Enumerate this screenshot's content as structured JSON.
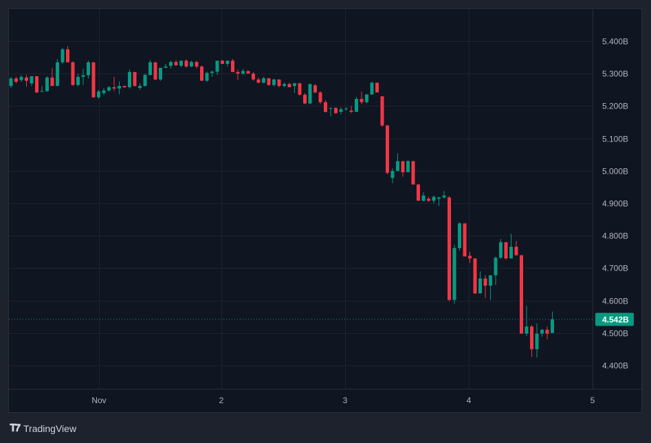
{
  "brand": {
    "name": "TradingView",
    "logo_icon": "tradingview-logo-icon"
  },
  "colors": {
    "background": "#1e222d",
    "pane": "#0f1521",
    "grid": "#1f2430",
    "up": "#089981",
    "down": "#f23645",
    "axis_text": "#b2b5be",
    "last_price_bg": "#089981"
  },
  "price_axis": {
    "labels": [
      "5.400B",
      "5.300B",
      "5.200B",
      "5.100B",
      "5.000B",
      "4.900B",
      "4.800B",
      "4.700B",
      "4.600B",
      "4.500B",
      "4.400B"
    ],
    "values": [
      5.4,
      5.3,
      5.2,
      5.1,
      5.0,
      4.9,
      4.8,
      4.7,
      4.6,
      4.5,
      4.4
    ]
  },
  "time_axis": {
    "labels": [
      "Nov",
      "2",
      "3",
      "4",
      "5"
    ]
  },
  "last_price": {
    "label": "4.542B",
    "value": 4.542
  },
  "chart_data": {
    "type": "candlestick",
    "title": "",
    "xlabel": "",
    "ylabel": "",
    "ylim": [
      4.35,
      5.48
    ],
    "unit": "B",
    "x_tick_labels": [
      "Nov",
      "2",
      "3",
      "4",
      "5"
    ],
    "y_tick_labels": [
      "4.400B",
      "4.500B",
      "4.600B",
      "4.700B",
      "4.800B",
      "4.900B",
      "5.000B",
      "5.100B",
      "5.200B",
      "5.300B",
      "5.400B"
    ],
    "last_price": 4.542,
    "grid": true,
    "interval": "1h (approx.)",
    "candles": [
      {
        "o": 5.262,
        "h": 5.29,
        "l": 5.255,
        "c": 5.285
      },
      {
        "o": 5.285,
        "h": 5.29,
        "l": 5.27,
        "c": 5.275
      },
      {
        "o": 5.28,
        "h": 5.295,
        "l": 5.275,
        "c": 5.29
      },
      {
        "o": 5.288,
        "h": 5.296,
        "l": 5.26,
        "c": 5.278
      },
      {
        "o": 5.27,
        "h": 5.292,
        "l": 5.262,
        "c": 5.292
      },
      {
        "o": 5.292,
        "h": 5.292,
        "l": 5.24,
        "c": 5.242
      },
      {
        "o": 5.244,
        "h": 5.262,
        "l": 5.244,
        "c": 5.246
      },
      {
        "o": 5.246,
        "h": 5.292,
        "l": 5.244,
        "c": 5.288
      },
      {
        "o": 5.288,
        "h": 5.318,
        "l": 5.262,
        "c": 5.262
      },
      {
        "o": 5.262,
        "h": 5.345,
        "l": 5.262,
        "c": 5.335
      },
      {
        "o": 5.335,
        "h": 5.38,
        "l": 5.33,
        "c": 5.375
      },
      {
        "o": 5.375,
        "h": 5.385,
        "l": 5.335,
        "c": 5.335
      },
      {
        "o": 5.335,
        "h": 5.338,
        "l": 5.262,
        "c": 5.265
      },
      {
        "o": 5.265,
        "h": 5.3,
        "l": 5.26,
        "c": 5.29
      },
      {
        "o": 5.29,
        "h": 5.315,
        "l": 5.265,
        "c": 5.295
      },
      {
        "o": 5.295,
        "h": 5.34,
        "l": 5.285,
        "c": 5.335
      },
      {
        "o": 5.335,
        "h": 5.335,
        "l": 5.225,
        "c": 5.227
      },
      {
        "o": 5.227,
        "h": 5.25,
        "l": 5.222,
        "c": 5.245
      },
      {
        "o": 5.24,
        "h": 5.256,
        "l": 5.234,
        "c": 5.248
      },
      {
        "o": 5.248,
        "h": 5.262,
        "l": 5.244,
        "c": 5.258
      },
      {
        "o": 5.258,
        "h": 5.29,
        "l": 5.246,
        "c": 5.254
      },
      {
        "o": 5.254,
        "h": 5.276,
        "l": 5.236,
        "c": 5.262
      },
      {
        "o": 5.262,
        "h": 5.262,
        "l": 5.256,
        "c": 5.258
      },
      {
        "o": 5.258,
        "h": 5.312,
        "l": 5.254,
        "c": 5.305
      },
      {
        "o": 5.305,
        "h": 5.305,
        "l": 5.26,
        "c": 5.262
      },
      {
        "o": 5.256,
        "h": 5.27,
        "l": 5.25,
        "c": 5.262
      },
      {
        "o": 5.262,
        "h": 5.3,
        "l": 5.26,
        "c": 5.296
      },
      {
        "o": 5.296,
        "h": 5.342,
        "l": 5.294,
        "c": 5.335
      },
      {
        "o": 5.335,
        "h": 5.335,
        "l": 5.28,
        "c": 5.282
      },
      {
        "o": 5.282,
        "h": 5.312,
        "l": 5.278,
        "c": 5.318
      },
      {
        "o": 5.318,
        "h": 5.33,
        "l": 5.318,
        "c": 5.322
      },
      {
        "o": 5.324,
        "h": 5.34,
        "l": 5.316,
        "c": 5.336
      },
      {
        "o": 5.336,
        "h": 5.342,
        "l": 5.324,
        "c": 5.326
      },
      {
        "o": 5.324,
        "h": 5.34,
        "l": 5.32,
        "c": 5.34
      },
      {
        "o": 5.34,
        "h": 5.344,
        "l": 5.318,
        "c": 5.322
      },
      {
        "o": 5.322,
        "h": 5.34,
        "l": 5.32,
        "c": 5.336
      },
      {
        "o": 5.336,
        "h": 5.34,
        "l": 5.316,
        "c": 5.322
      },
      {
        "o": 5.322,
        "h": 5.325,
        "l": 5.278,
        "c": 5.278
      },
      {
        "o": 5.278,
        "h": 5.306,
        "l": 5.274,
        "c": 5.302
      },
      {
        "o": 5.302,
        "h": 5.31,
        "l": 5.29,
        "c": 5.306
      },
      {
        "o": 5.306,
        "h": 5.34,
        "l": 5.296,
        "c": 5.34
      },
      {
        "o": 5.34,
        "h": 5.342,
        "l": 5.33,
        "c": 5.33
      },
      {
        "o": 5.33,
        "h": 5.34,
        "l": 5.322,
        "c": 5.34
      },
      {
        "o": 5.34,
        "h": 5.345,
        "l": 5.305,
        "c": 5.305
      },
      {
        "o": 5.305,
        "h": 5.312,
        "l": 5.28,
        "c": 5.3
      },
      {
        "o": 5.3,
        "h": 5.315,
        "l": 5.296,
        "c": 5.308
      },
      {
        "o": 5.308,
        "h": 5.31,
        "l": 5.302,
        "c": 5.3
      },
      {
        "o": 5.3,
        "h": 5.305,
        "l": 5.278,
        "c": 5.282
      },
      {
        "o": 5.282,
        "h": 5.288,
        "l": 5.27,
        "c": 5.272
      },
      {
        "o": 5.272,
        "h": 5.29,
        "l": 5.27,
        "c": 5.286
      },
      {
        "o": 5.286,
        "h": 5.286,
        "l": 5.262,
        "c": 5.265
      },
      {
        "o": 5.265,
        "h": 5.284,
        "l": 5.26,
        "c": 5.282
      },
      {
        "o": 5.282,
        "h": 5.282,
        "l": 5.258,
        "c": 5.262
      },
      {
        "o": 5.262,
        "h": 5.272,
        "l": 5.258,
        "c": 5.268
      },
      {
        "o": 5.268,
        "h": 5.272,
        "l": 5.258,
        "c": 5.258
      },
      {
        "o": 5.262,
        "h": 5.272,
        "l": 5.24,
        "c": 5.27
      },
      {
        "o": 5.27,
        "h": 5.272,
        "l": 5.232,
        "c": 5.235
      },
      {
        "o": 5.235,
        "h": 5.24,
        "l": 5.206,
        "c": 5.208
      },
      {
        "o": 5.208,
        "h": 5.268,
        "l": 5.206,
        "c": 5.268
      },
      {
        "o": 5.264,
        "h": 5.268,
        "l": 5.24,
        "c": 5.242
      },
      {
        "o": 5.242,
        "h": 5.246,
        "l": 5.206,
        "c": 5.212
      },
      {
        "o": 5.212,
        "h": 5.218,
        "l": 5.18,
        "c": 5.182
      },
      {
        "o": 5.194,
        "h": 5.196,
        "l": 5.168,
        "c": 5.194
      },
      {
        "o": 5.194,
        "h": 5.196,
        "l": 5.176,
        "c": 5.178
      },
      {
        "o": 5.182,
        "h": 5.196,
        "l": 5.174,
        "c": 5.19
      },
      {
        "o": 5.19,
        "h": 5.196,
        "l": 5.186,
        "c": 5.192
      },
      {
        "o": 5.186,
        "h": 5.2,
        "l": 5.178,
        "c": 5.182
      },
      {
        "o": 5.182,
        "h": 5.228,
        "l": 5.182,
        "c": 5.222
      },
      {
        "o": 5.222,
        "h": 5.244,
        "l": 5.206,
        "c": 5.212
      },
      {
        "o": 5.212,
        "h": 5.236,
        "l": 5.208,
        "c": 5.236
      },
      {
        "o": 5.236,
        "h": 5.275,
        "l": 5.234,
        "c": 5.272
      },
      {
        "o": 5.272,
        "h": 5.272,
        "l": 5.242,
        "c": 5.242
      },
      {
        "o": 5.23,
        "h": 5.23,
        "l": 5.136,
        "c": 5.14
      },
      {
        "o": 5.14,
        "h": 5.142,
        "l": 4.99,
        "c": 4.994
      },
      {
        "o": 4.978,
        "h": 5.008,
        "l": 4.962,
        "c": 5.0
      },
      {
        "o": 5.0,
        "h": 5.054,
        "l": 4.998,
        "c": 5.03
      },
      {
        "o": 5.03,
        "h": 5.03,
        "l": 4.982,
        "c": 4.996
      },
      {
        "o": 4.996,
        "h": 5.034,
        "l": 4.996,
        "c": 5.03
      },
      {
        "o": 5.03,
        "h": 5.03,
        "l": 4.958,
        "c": 4.958
      },
      {
        "o": 4.958,
        "h": 4.96,
        "l": 4.908,
        "c": 4.908
      },
      {
        "o": 4.908,
        "h": 4.934,
        "l": 4.906,
        "c": 4.924
      },
      {
        "o": 4.914,
        "h": 4.92,
        "l": 4.904,
        "c": 4.908
      },
      {
        "o": 4.908,
        "h": 4.924,
        "l": 4.9,
        "c": 4.92
      },
      {
        "o": 4.914,
        "h": 4.92,
        "l": 4.892,
        "c": 4.918
      },
      {
        "o": 4.918,
        "h": 4.938,
        "l": 4.914,
        "c": 4.924
      },
      {
        "o": 4.918,
        "h": 4.922,
        "l": 4.598,
        "c": 4.602
      },
      {
        "o": 4.602,
        "h": 4.772,
        "l": 4.59,
        "c": 4.762
      },
      {
        "o": 4.762,
        "h": 4.842,
        "l": 4.754,
        "c": 4.838
      },
      {
        "o": 4.838,
        "h": 4.838,
        "l": 4.736,
        "c": 4.736
      },
      {
        "o": 4.738,
        "h": 4.75,
        "l": 4.716,
        "c": 4.73
      },
      {
        "o": 4.73,
        "h": 4.73,
        "l": 4.62,
        "c": 4.622
      },
      {
        "o": 4.622,
        "h": 4.69,
        "l": 4.622,
        "c": 4.668
      },
      {
        "o": 4.668,
        "h": 4.678,
        "l": 4.608,
        "c": 4.646
      },
      {
        "o": 4.646,
        "h": 4.678,
        "l": 4.602,
        "c": 4.678
      },
      {
        "o": 4.678,
        "h": 4.736,
        "l": 4.648,
        "c": 4.732
      },
      {
        "o": 4.732,
        "h": 4.79,
        "l": 4.728,
        "c": 4.78
      },
      {
        "o": 4.78,
        "h": 4.78,
        "l": 4.726,
        "c": 4.73
      },
      {
        "o": 4.73,
        "h": 4.806,
        "l": 4.73,
        "c": 4.766
      },
      {
        "o": 4.766,
        "h": 4.784,
        "l": 4.738,
        "c": 4.74
      },
      {
        "o": 4.74,
        "h": 4.74,
        "l": 4.498,
        "c": 4.498
      },
      {
        "o": 4.498,
        "h": 4.584,
        "l": 4.49,
        "c": 4.52
      },
      {
        "o": 4.52,
        "h": 4.524,
        "l": 4.426,
        "c": 4.45
      },
      {
        "o": 4.45,
        "h": 4.53,
        "l": 4.424,
        "c": 4.498
      },
      {
        "o": 4.498,
        "h": 4.512,
        "l": 4.488,
        "c": 4.51
      },
      {
        "o": 4.51,
        "h": 4.52,
        "l": 4.48,
        "c": 4.498
      },
      {
        "o": 4.5,
        "h": 4.566,
        "l": 4.5,
        "c": 4.542
      }
    ]
  }
}
